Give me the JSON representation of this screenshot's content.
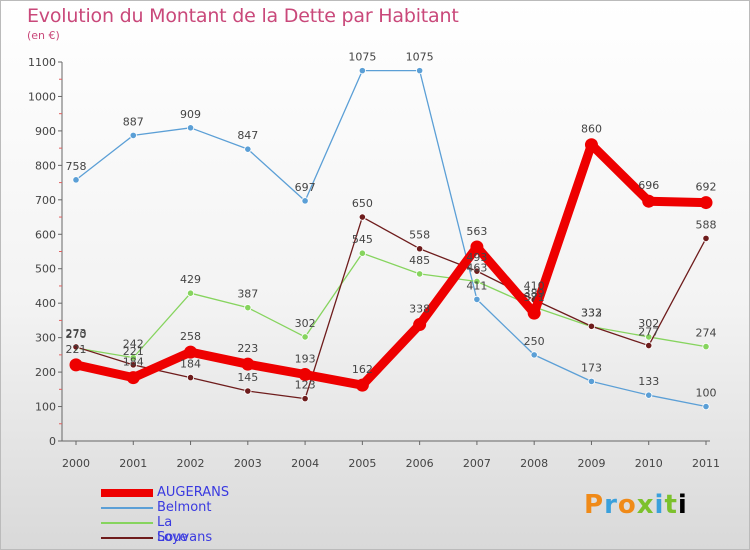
{
  "chart_data": {
    "type": "line",
    "title": "Evolution du Montant de la Dette par Habitant",
    "subtitle": "(en €)",
    "x": [
      "2000",
      "2001",
      "2002",
      "2003",
      "2004",
      "2005",
      "2006",
      "2007",
      "2008",
      "2009",
      "2010",
      "2011"
    ],
    "ylim": [
      0,
      1100
    ],
    "yticks": [
      0,
      100,
      200,
      300,
      400,
      500,
      600,
      700,
      800,
      900,
      1000,
      1100
    ],
    "grid": false,
    "legend_position": "bottom-left",
    "series": [
      {
        "name": "AUGERANS",
        "color": "#ee0000",
        "values": [
          221,
          184,
          258,
          223,
          193,
          162,
          338,
          563,
          371,
          860,
          696,
          692
        ]
      },
      {
        "name": "Belmont",
        "color": "#5b9fd6",
        "values": [
          758,
          887,
          909,
          847,
          697,
          1075,
          1075,
          411,
          250,
          173,
          133,
          100
        ]
      },
      {
        "name": "La Loye",
        "color": "#86d45e",
        "values": [
          270,
          242,
          429,
          387,
          302,
          545,
          485,
          463,
          389,
          332,
          302,
          274
        ]
      },
      {
        "name": "Souvans",
        "color": "#6e1c1c",
        "values": [
          273,
          221,
          184,
          145,
          123,
          650,
          558,
          493,
          410,
          333,
          277,
          588
        ]
      }
    ]
  },
  "logo_text": [
    "P",
    "r",
    "o",
    "x",
    "i",
    "t",
    "i"
  ]
}
